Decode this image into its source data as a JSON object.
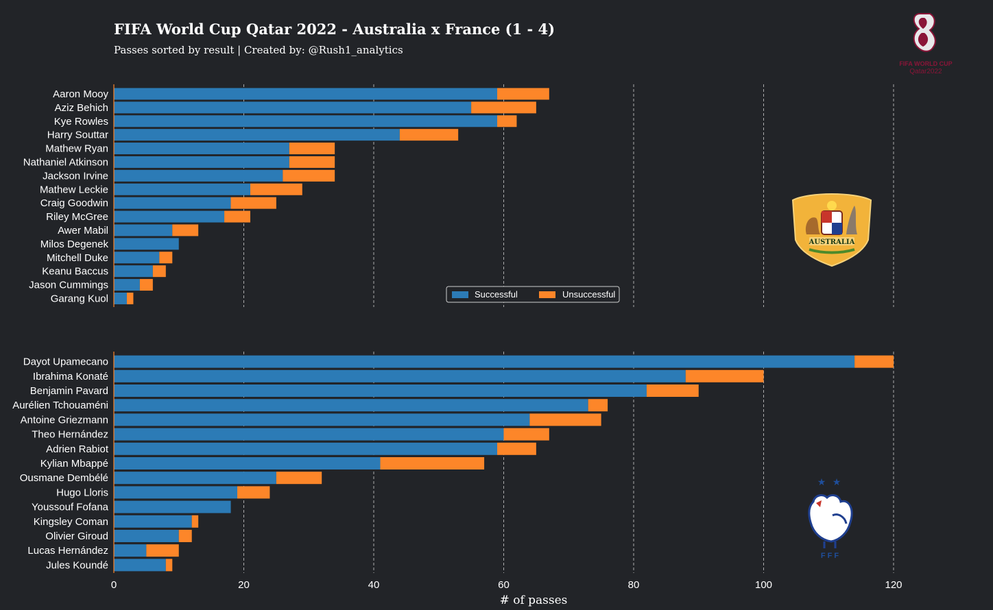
{
  "header": {
    "title": "FIFA World Cup Qatar 2022 - Australia x France (1 - 4)",
    "subtitle": "Passes sorted by result | Created by: @Rush1_analytics"
  },
  "logo": {
    "icon": "world-cup-trophy-icon",
    "line1": "FIFA WORLD CUP",
    "line2": "Qatar2022"
  },
  "crests": {
    "australia": {
      "icon": "australia-crest-icon",
      "text": "AUSTRALIA"
    },
    "france": {
      "icon": "france-rooster-crest-icon",
      "text": "F F F"
    }
  },
  "colors": {
    "background": "#222428",
    "successful": "#2c7bb6",
    "unsuccessful": "#fd8629",
    "grid": "#cfcfcf",
    "text": "#ffffff"
  },
  "chart_data": [
    {
      "type": "bar",
      "orientation": "horizontal",
      "stacked": true,
      "team": "Australia",
      "categories": [
        "Aaron Mooy",
        "Aziz Behich",
        "Kye Rowles",
        "Harry Souttar",
        "Mathew Ryan",
        "Nathaniel Atkinson",
        "Jackson Irvine",
        "Mathew Leckie",
        "Craig Goodwin",
        "Riley McGree",
        "Awer Mabil",
        "Milos Degenek",
        "Mitchell Duke",
        "Keanu Baccus",
        "Jason Cummings",
        "Garang Kuol"
      ],
      "series": [
        {
          "name": "Successful",
          "values": [
            59,
            55,
            59,
            44,
            27,
            27,
            26,
            21,
            18,
            17,
            9,
            10,
            7,
            6,
            4,
            2
          ]
        },
        {
          "name": "Unsuccessful",
          "values": [
            8,
            10,
            3,
            9,
            7,
            7,
            8,
            8,
            7,
            4,
            4,
            0,
            2,
            2,
            2,
            1
          ]
        }
      ],
      "xlim": [
        0,
        120
      ],
      "grid": "x",
      "legend": "lower-center-right"
    },
    {
      "type": "bar",
      "orientation": "horizontal",
      "stacked": true,
      "team": "France",
      "categories": [
        "Dayot Upamecano",
        "Ibrahima Konaté",
        "Benjamin Pavard",
        "Aurélien Tchouaméni",
        "Antoine Griezmann",
        "Theo Hernández",
        "Adrien Rabiot",
        "Kylian Mbappé",
        "Ousmane Dembélé",
        "Hugo Lloris",
        "Youssouf Fofana",
        "Kingsley Coman",
        "Olivier Giroud",
        "Lucas Hernández",
        "Jules Koundé"
      ],
      "series": [
        {
          "name": "Successful",
          "values": [
            114,
            88,
            82,
            73,
            64,
            60,
            59,
            41,
            25,
            19,
            18,
            12,
            10,
            5,
            8
          ]
        },
        {
          "name": "Unsuccessful",
          "values": [
            6,
            12,
            8,
            3,
            11,
            7,
            6,
            16,
            7,
            5,
            0,
            1,
            2,
            5,
            1
          ]
        }
      ],
      "xlim": [
        0,
        120
      ],
      "xticks": [
        0,
        20,
        40,
        60,
        80,
        100,
        120
      ],
      "xlabel": "# of passes",
      "grid": "x"
    }
  ]
}
